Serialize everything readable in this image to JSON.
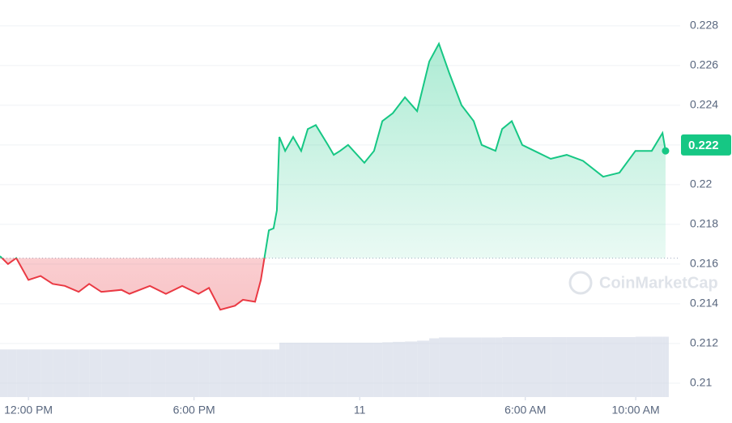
{
  "chart_data": {
    "type": "line",
    "x": [
      10.97,
      11.26,
      11.56,
      12.0,
      12.44,
      12.88,
      13.32,
      13.82,
      14.2,
      14.64,
      15.37,
      15.66,
      16.4,
      16.98,
      17.57,
      18.16,
      18.54,
      18.95,
      19.48,
      19.77,
      20.21,
      20.42,
      20.71,
      20.88,
      21.0,
      21.09,
      21.3,
      21.59,
      21.88,
      22.12,
      22.41,
      22.85,
      23.06,
      23.29,
      23.58,
      24.17,
      24.52,
      24.82,
      25.2,
      25.64,
      26.08,
      26.52,
      26.87,
      27.25,
      27.69,
      28.13,
      28.42,
      28.92,
      29.16,
      29.51,
      29.89,
      30.33,
      30.92,
      31.5,
      32.09,
      32.82,
      33.41,
      33.99,
      34.58,
      34.97,
      35.08
    ],
    "series": [
      {
        "color": "#16c784",
        "down_color": "#ea3943",
        "values": [
          0.2164,
          0.216,
          0.2163,
          0.2152,
          0.2154,
          0.215,
          0.2149,
          0.2146,
          0.215,
          0.2146,
          0.2147,
          0.2145,
          0.2149,
          0.2145,
          0.2149,
          0.2145,
          0.2148,
          0.2137,
          0.2139,
          0.2142,
          0.2141,
          0.2152,
          0.2177,
          0.2178,
          0.2187,
          0.2224,
          0.2217,
          0.2224,
          0.2217,
          0.2228,
          0.223,
          0.222,
          0.2215,
          0.2217,
          0.222,
          0.2211,
          0.2217,
          0.2232,
          0.2236,
          0.2244,
          0.2237,
          0.2262,
          0.2271,
          0.2256,
          0.224,
          0.2232,
          0.222,
          0.2217,
          0.2228,
          0.2232,
          0.222,
          0.2217,
          0.2213,
          0.2215,
          0.2212,
          0.2204,
          0.2206,
          0.2217,
          0.2217,
          0.2226,
          0.2217
        ]
      },
      {
        "color": "#cfd6e4",
        "values": [
          12,
          12,
          12,
          12,
          12,
          12,
          12,
          12,
          12,
          12,
          12,
          12,
          12,
          12,
          12,
          12,
          12,
          12,
          12,
          12,
          12,
          12,
          12,
          12,
          12,
          13.7,
          13.7,
          13.7,
          13.7,
          13.7,
          13.7,
          13.7,
          13.7,
          13.7,
          13.7,
          13.7,
          13.7,
          13.8,
          13.9,
          14,
          14.2,
          14.8,
          15,
          15,
          15,
          15,
          15,
          15,
          15.1,
          15.1,
          15.1,
          15.1,
          15.1,
          15.1,
          15.1,
          15.1,
          15.1,
          15.2,
          15.2,
          15.2,
          15.2
        ]
      }
    ],
    "open_price": 0.2163,
    "current_price": 0.222,
    "watermark": "CoinMarketCap",
    "xlim": [
      10.97,
      35.61
    ],
    "xticks": [
      {
        "value": 12,
        "label": "12:00 PM"
      },
      {
        "value": 18,
        "label": "6:00 PM"
      },
      {
        "value": 24,
        "label": "11"
      },
      {
        "value": 30,
        "label": "6:00 AM"
      },
      {
        "value": 34,
        "label": "10:00 AM"
      }
    ],
    "ylim": [
      0.2093,
      0.2293
    ],
    "yticks": [
      0.21,
      0.212,
      0.214,
      0.216,
      0.218,
      0.22,
      0.222,
      0.224,
      0.226,
      0.228
    ],
    "volume_lim": [
      0,
      100
    ],
    "grid": true
  }
}
